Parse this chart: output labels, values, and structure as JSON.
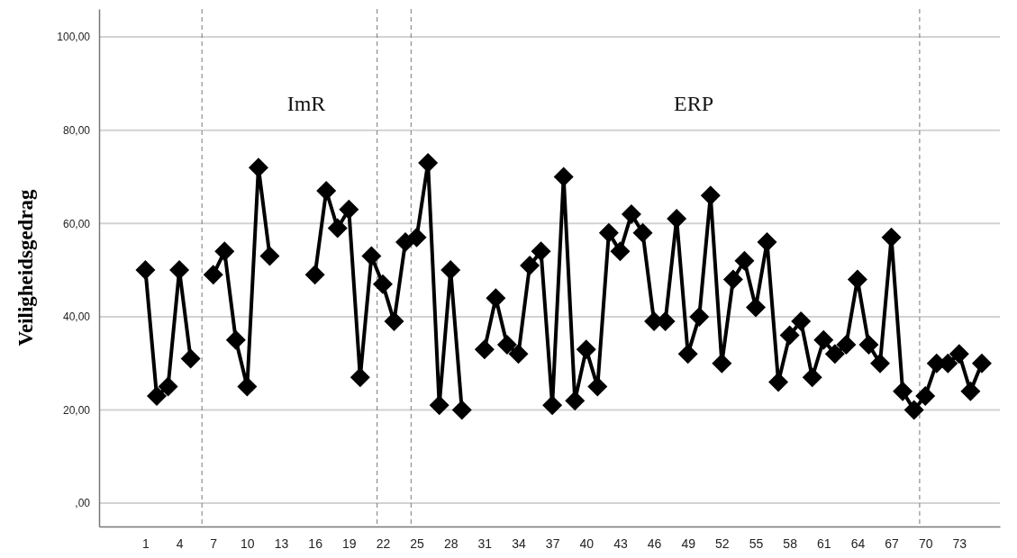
{
  "chart_data": {
    "type": "line",
    "ylabel": "Veiligheidsgedrag",
    "x": [
      1,
      2,
      3,
      4,
      5,
      6,
      7,
      8,
      9,
      10,
      11,
      12,
      13,
      14,
      15,
      16,
      17,
      18,
      19,
      20,
      21,
      22,
      23,
      24,
      25,
      26,
      27,
      28,
      29,
      30,
      31,
      32,
      33,
      34,
      35,
      36,
      37,
      38,
      39,
      40,
      41,
      42,
      43,
      44,
      45,
      46,
      47,
      48,
      49,
      50,
      51,
      52,
      53,
      54,
      55,
      56,
      57,
      58,
      59,
      60,
      61,
      62,
      63,
      64,
      65,
      66,
      67,
      68,
      69,
      70,
      71,
      72,
      73,
      74,
      75
    ],
    "series": [
      {
        "color": "#000000",
        "values": [
          50,
          23,
          25,
          50,
          31,
          null,
          49,
          54,
          35,
          25,
          72,
          53,
          null,
          null,
          null,
          49,
          67,
          59,
          63,
          27,
          53,
          47,
          39,
          56,
          57,
          73,
          21,
          50,
          20,
          null,
          33,
          44,
          34,
          32,
          51,
          54,
          21,
          70,
          22,
          33,
          25,
          58,
          54,
          62,
          58,
          39,
          39,
          61,
          32,
          40,
          66,
          30,
          48,
          52,
          42,
          56,
          26,
          36,
          39,
          27,
          35,
          32,
          34,
          48,
          34,
          30,
          57,
          24,
          20,
          23,
          30,
          30,
          32,
          24,
          30
        ]
      }
    ],
    "xlim": [
      -3.1,
      76.6
    ],
    "xticks": [
      1,
      4,
      7,
      10,
      13,
      16,
      19,
      22,
      25,
      28,
      31,
      34,
      37,
      40,
      43,
      46,
      49,
      52,
      55,
      58,
      61,
      64,
      67,
      70,
      73
    ],
    "ylim": [
      -5,
      106
    ],
    "yticks": [
      {
        "value": 0,
        "label": ",00"
      },
      {
        "value": 20,
        "label": "20,00"
      },
      {
        "value": 40,
        "label": "40,00"
      },
      {
        "value": 60,
        "label": "60,00"
      },
      {
        "value": 80,
        "label": "80,00"
      },
      {
        "value": 100,
        "label": "100,00"
      }
    ],
    "grid": "y",
    "marker": "diamond",
    "line_style": "solid",
    "ref_lines": [
      {
        "axis": "x",
        "value": 6,
        "line_style": "dashed"
      },
      {
        "axis": "x",
        "value": 21.5,
        "line_style": "dashed"
      },
      {
        "axis": "x",
        "value": 24.5,
        "line_style": "dashed"
      },
      {
        "axis": "x",
        "value": 69.5,
        "line_style": "dashed"
      }
    ],
    "annotations": [
      "ImR",
      "ERP"
    ]
  }
}
